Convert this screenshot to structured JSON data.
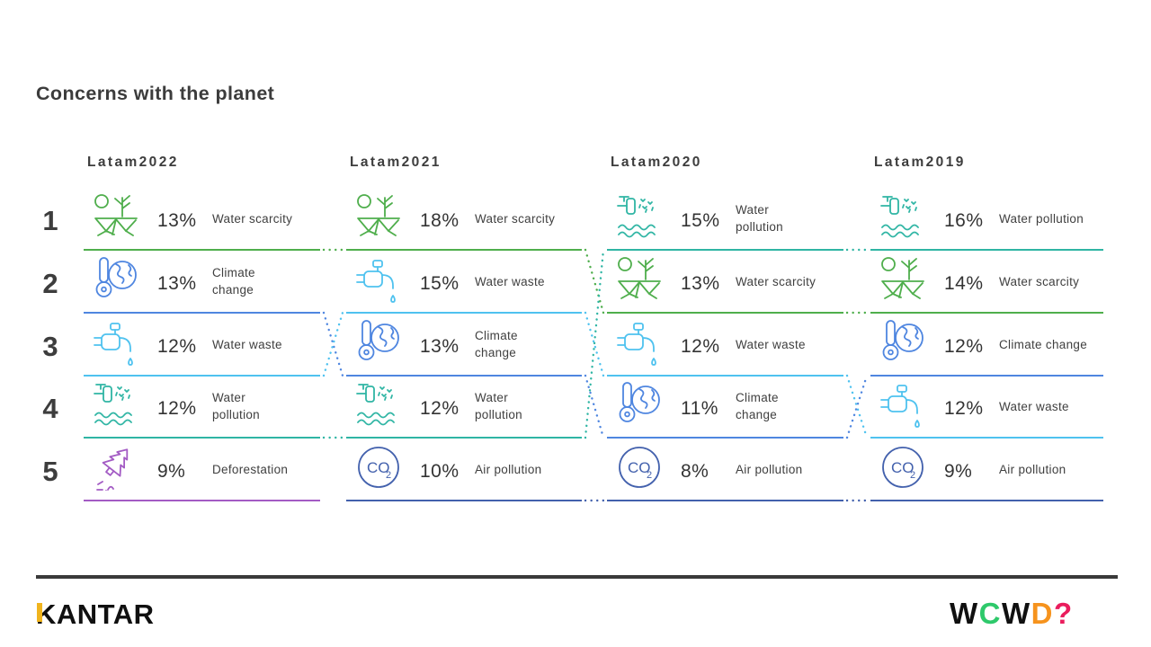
{
  "title": "Concerns with the planet",
  "ranks": [
    "1",
    "2",
    "3",
    "4",
    "5"
  ],
  "colors": {
    "water-scarcity": "#4fae4c",
    "climate-change": "#4f86e0",
    "water-waste": "#4fc2ef",
    "water-pollution": "#2fb5a4",
    "deforestation": "#a35bc4",
    "air-pollution": "#4361ad"
  },
  "columns": [
    {
      "header": "Latam2022",
      "items": [
        {
          "category": "water-scarcity",
          "pct": "13%",
          "label": "Water scarcity"
        },
        {
          "category": "climate-change",
          "pct": "13%",
          "label": "Climate\nchange"
        },
        {
          "category": "water-waste",
          "pct": "12%",
          "label": "Water waste"
        },
        {
          "category": "water-pollution",
          "pct": "12%",
          "label": "Water\npollution"
        },
        {
          "category": "deforestation",
          "pct": "9%",
          "label": "Deforestation"
        }
      ]
    },
    {
      "header": "Latam2021",
      "items": [
        {
          "category": "water-scarcity",
          "pct": "18%",
          "label": "Water scarcity"
        },
        {
          "category": "water-waste",
          "pct": "15%",
          "label": "Water waste"
        },
        {
          "category": "climate-change",
          "pct": "13%",
          "label": "Climate\nchange"
        },
        {
          "category": "water-pollution",
          "pct": "12%",
          "label": "Water\npollution"
        },
        {
          "category": "air-pollution",
          "pct": "10%",
          "label": "Air pollution"
        }
      ]
    },
    {
      "header": "Latam2020",
      "items": [
        {
          "category": "water-pollution",
          "pct": "15%",
          "label": "Water\npollution"
        },
        {
          "category": "water-scarcity",
          "pct": "13%",
          "label": "Water scarcity"
        },
        {
          "category": "water-waste",
          "pct": "12%",
          "label": "Water waste"
        },
        {
          "category": "climate-change",
          "pct": "11%",
          "label": "Climate\nchange"
        },
        {
          "category": "air-pollution",
          "pct": "8%",
          "label": "Air pollution"
        }
      ]
    },
    {
      "header": "Latam2019",
      "items": [
        {
          "category": "water-pollution",
          "pct": "16%",
          "label": "Water pollution"
        },
        {
          "category": "water-scarcity",
          "pct": "14%",
          "label": "Water scarcity"
        },
        {
          "category": "climate-change",
          "pct": "12%",
          "label": "Climate change"
        },
        {
          "category": "water-waste",
          "pct": "12%",
          "label": "Water waste"
        },
        {
          "category": "air-pollution",
          "pct": "9%",
          "label": "Air pollution"
        }
      ]
    }
  ],
  "footer": {
    "kantar": "KANTAR",
    "kantar_accent": "#f0b41e",
    "wcwd": [
      {
        "ch": "W",
        "color": "#101010"
      },
      {
        "ch": "C",
        "color": "#2ec96b"
      },
      {
        "ch": "W",
        "color": "#101010"
      },
      {
        "ch": "D",
        "color": "#f6931d"
      },
      {
        "ch": "?",
        "color": "#ea1d5d"
      }
    ]
  },
  "chart_data": {
    "type": "table",
    "title": "Concerns with the planet",
    "categories": [
      "Latam2022",
      "Latam2021",
      "Latam2020",
      "Latam2019"
    ],
    "series": [
      {
        "name": "Water scarcity",
        "values_pct": [
          13,
          18,
          13,
          14
        ],
        "ranks": [
          1,
          1,
          2,
          2
        ]
      },
      {
        "name": "Climate change",
        "values_pct": [
          13,
          13,
          11,
          12
        ],
        "ranks": [
          2,
          3,
          4,
          3
        ]
      },
      {
        "name": "Water waste",
        "values_pct": [
          12,
          15,
          12,
          12
        ],
        "ranks": [
          3,
          2,
          3,
          4
        ]
      },
      {
        "name": "Water pollution",
        "values_pct": [
          12,
          12,
          15,
          16
        ],
        "ranks": [
          4,
          4,
          1,
          1
        ]
      },
      {
        "name": "Deforestation",
        "values_pct": [
          9,
          null,
          null,
          null
        ],
        "ranks": [
          5,
          null,
          null,
          null
        ]
      },
      {
        "name": "Air pollution",
        "values_pct": [
          null,
          10,
          8,
          9
        ],
        "ranks": [
          null,
          5,
          5,
          5
        ]
      }
    ],
    "legend_position": "none",
    "grid": false
  }
}
